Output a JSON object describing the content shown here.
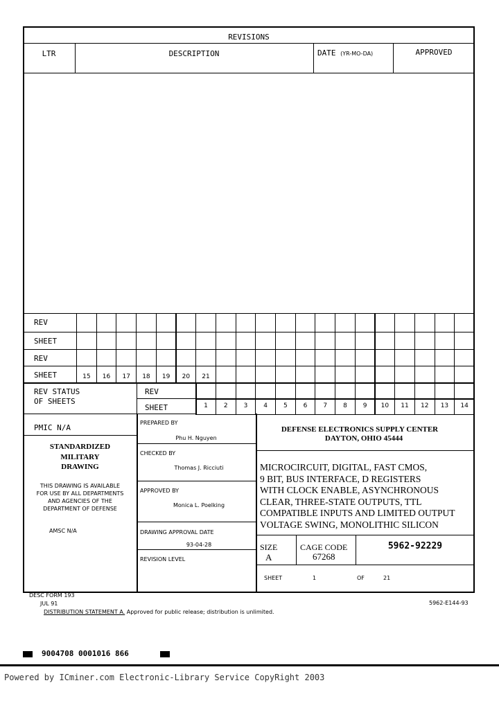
{
  "revisions": {
    "title": "REVISIONS",
    "col_ltr": "LTR",
    "col_description": "DESCRIPTION",
    "col_date": "DATE",
    "col_date_format": "(YR-MO-DA)",
    "col_approved": "APPROVED"
  },
  "rev_grid": {
    "rev_label": "REV",
    "sheet_label": "SHEET",
    "upper_sheets": [
      "15",
      "16",
      "17",
      "18",
      "19",
      "20",
      "21"
    ],
    "status_label_1": "REV STATUS",
    "status_label_2": "OF SHEETS",
    "lower_sheets": [
      "1",
      "2",
      "3",
      "4",
      "5",
      "6",
      "7",
      "8",
      "9",
      "10",
      "11",
      "12",
      "13",
      "14"
    ]
  },
  "left": {
    "pmic": "PMIC N/A",
    "title_1": "STANDARDIZED",
    "title_2": "MILITARY",
    "title_3": "DRAWING",
    "avail_1": "THIS DRAWING IS AVAILABLE",
    "avail_2": "FOR USE BY ALL DEPARTMENTS",
    "avail_3": "AND AGENCIES OF THE",
    "avail_4": "DEPARTMENT OF DEFENSE",
    "amsc": "AMSC N/A"
  },
  "middle": {
    "prepared_label": "PREPARED BY",
    "prepared_name": "Phu H. Nguyen",
    "checked_label": "CHECKED BY",
    "checked_name": "Thomas J. Ricciuti",
    "approved_label": "APPROVED BY",
    "approved_name": "Monica L. Poelking",
    "date_label": "DRAWING APPROVAL DATE",
    "date_value": "93-04-28",
    "revision_label": "REVISION LEVEL"
  },
  "right": {
    "org_1": "DEFENSE ELECTRONICS SUPPLY CENTER",
    "org_2": "DAYTON, OHIO  45444",
    "title_lines": [
      "MICROCIRCUIT, DIGITAL, FAST CMOS,",
      "9 BIT, BUS INTERFACE, D REGISTERS",
      "WITH CLOCK ENABLE, ASYNCHRONOUS",
      "CLEAR, THREE-STATE OUTPUTS, TTL",
      "COMPATIBLE INPUTS AND LIMITED OUTPUT",
      "VOLTAGE SWING, MONOLITHIC SILICON"
    ],
    "size_label": "SIZE",
    "size_value": "A",
    "cage_label": "CAGE CODE",
    "cage_value": "67268",
    "drawing_number": "5962-92229",
    "sheet_label": "SHEET",
    "sheet_value": "1",
    "of_label": "OF",
    "of_value": "21"
  },
  "bottom": {
    "form": "DESC FORM 193",
    "form_date": "JUL 91",
    "distribution_label": "DISTRIBUTION STATEMENT A.",
    "distribution_text": "Approved for public release; distribution is unlimited.",
    "doc_code": "5962-E144-93",
    "barcode_text": "9004708 0001016 866",
    "footer": "Powered by ICminer.com Electronic-Library Service CopyRight 2003"
  }
}
